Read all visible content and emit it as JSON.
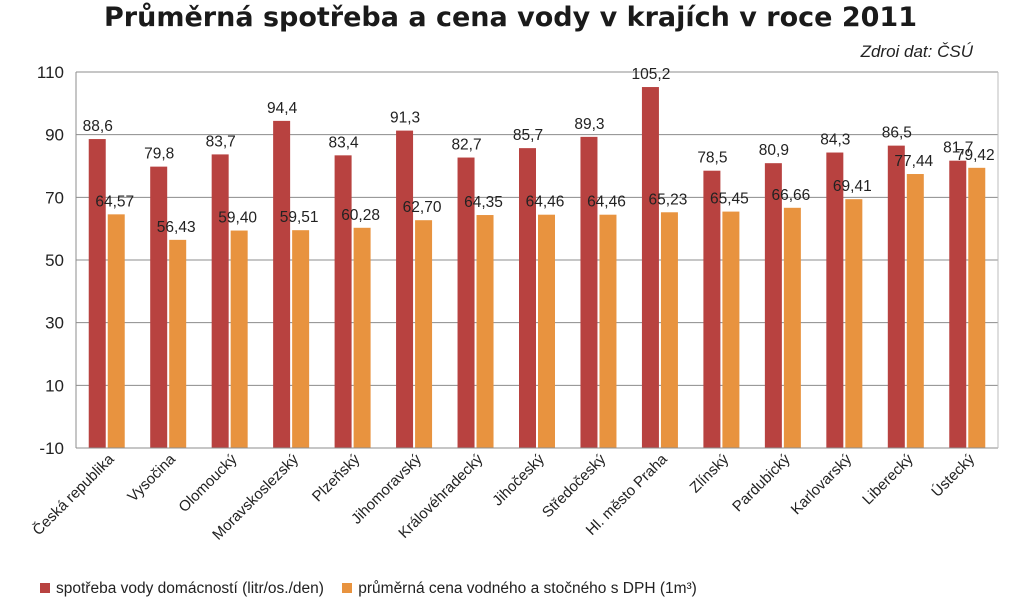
{
  "chart_data": {
    "type": "bar",
    "title": "Průměrná spotřeba a cena vody v krajích v roce 2011",
    "source_note": "Zdroi dat: ČSÚ",
    "categories": [
      "Česká republika",
      "Vysočina",
      "Olomoucký",
      "Moravskoslezský",
      "Plzeňský",
      "Jihomoravský",
      "Královéhradecký",
      "Jihočeský",
      "Středočeský",
      "Hl. město Praha",
      "Zlínský",
      "Pardubický",
      "Karlovarský",
      "Liberecký",
      "Ústecký"
    ],
    "series": [
      {
        "name": "spotřeba vody domácností (litr/os./den)",
        "color": "#b84240",
        "values": [
          88.6,
          79.8,
          83.7,
          94.4,
          83.4,
          91.3,
          82.7,
          85.7,
          89.3,
          105.2,
          78.5,
          80.9,
          84.3,
          86.5,
          81.7
        ],
        "labels": [
          "88,6",
          "79,8",
          "83,7",
          "94,4",
          "83,4",
          "91,3",
          "82,7",
          "85,7",
          "89,3",
          "105,2",
          "78,5",
          "80,9",
          "84,3",
          "86,5",
          "81,7"
        ]
      },
      {
        "name": "průměrná cena vodného a stočného s DPH (1m³)",
        "color": "#e8933f",
        "values": [
          64.57,
          56.43,
          59.4,
          59.51,
          60.28,
          62.7,
          64.35,
          64.46,
          64.46,
          65.23,
          65.45,
          66.66,
          69.41,
          77.44,
          79.42
        ],
        "labels": [
          "64,57",
          "56,43",
          "59,40",
          "59,51",
          "60,28",
          "62,70",
          "64,35",
          "64,46",
          "64,46",
          "65,23",
          "65,45",
          "66,66",
          "69,41",
          "77,44",
          "79,42"
        ]
      }
    ],
    "ylim": [
      -10,
      110
    ],
    "yticks": [
      -10,
      10,
      30,
      50,
      70,
      90,
      110
    ],
    "grid": true,
    "legend": "bottom"
  }
}
